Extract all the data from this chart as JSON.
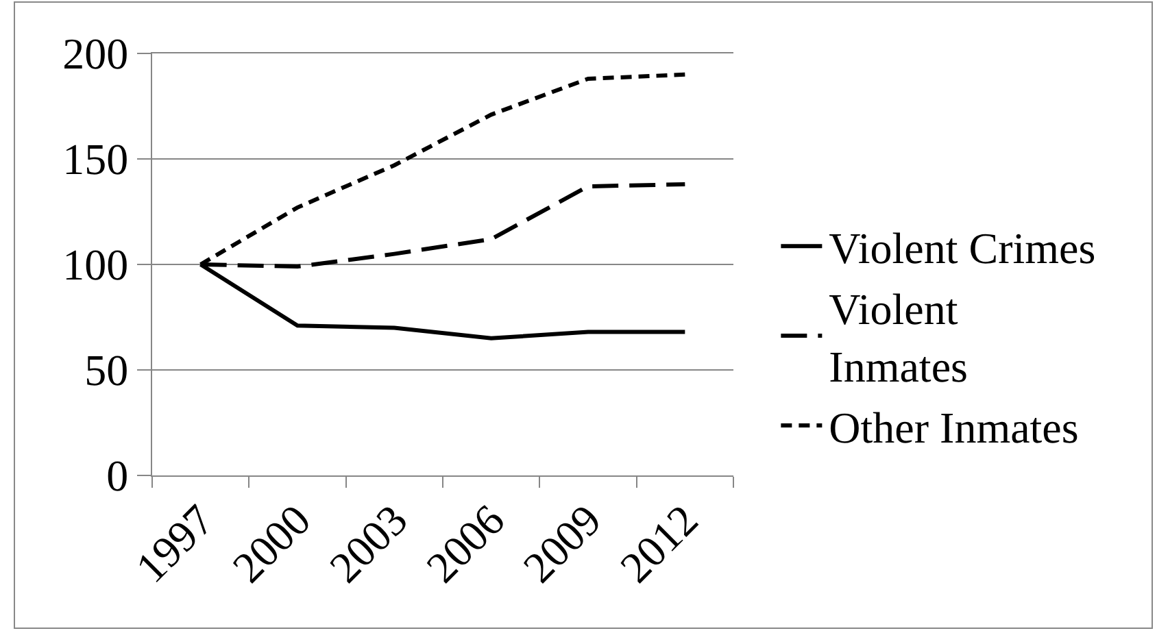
{
  "chart_data": {
    "type": "line",
    "categories": [
      "1997",
      "2000",
      "2003",
      "2006",
      "2009",
      "2012"
    ],
    "series": [
      {
        "name": "Violent Crimes",
        "color": "#000000",
        "line_style": "solid",
        "values": [
          100,
          71,
          70,
          65,
          68,
          68
        ]
      },
      {
        "name": "Violent Inmates",
        "color": "#000000",
        "line_style": "dashed",
        "values": [
          100,
          99,
          105,
          112,
          137,
          138
        ]
      },
      {
        "name": "Other Inmates",
        "color": "#000000",
        "line_style": "dotted",
        "values": [
          100,
          127,
          147,
          171,
          188,
          190
        ]
      }
    ],
    "ylim": [
      0,
      200
    ],
    "yticks": [
      0,
      50,
      100,
      150,
      200
    ],
    "grid": "y",
    "legend": "right"
  }
}
